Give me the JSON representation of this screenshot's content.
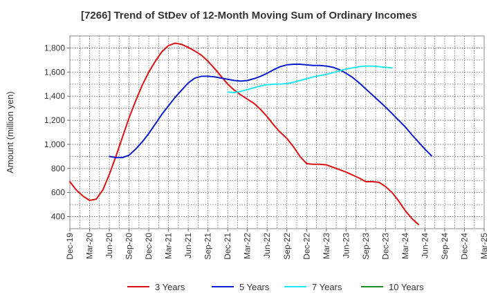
{
  "chart_data": {
    "type": "line",
    "title": "[7266]  Trend of StDev of 12-Month Moving Sum of Ordinary Incomes",
    "xlabel": "",
    "ylabel": "Amount (million yen)",
    "ylim": [
      300,
      1900
    ],
    "yticks": [
      400,
      600,
      800,
      1000,
      1200,
      1400,
      1600,
      1800
    ],
    "ytick_labels": [
      "400",
      "600",
      "800",
      "1,000",
      "1,200",
      "1,400",
      "1,600",
      "1,800"
    ],
    "xticks": [
      "Dec-19",
      "Mar-20",
      "Jun-20",
      "Sep-20",
      "Dec-20",
      "Mar-21",
      "Jun-21",
      "Sep-21",
      "Dec-21",
      "Mar-22",
      "Jun-22",
      "Sep-22",
      "Dec-22",
      "Mar-23",
      "Jun-23",
      "Sep-23",
      "Dec-23",
      "Mar-24",
      "Jun-24",
      "Sep-24",
      "Dec-24",
      "Mar-25"
    ],
    "grid": true,
    "legend_position": "bottom",
    "series": [
      {
        "name": "3 Years",
        "color": "#dd1111",
        "start_index": 0,
        "values": [
          690,
          620,
          570,
          535,
          545,
          620,
          750,
          900,
          1060,
          1220,
          1360,
          1490,
          1600,
          1690,
          1770,
          1820,
          1840,
          1830,
          1805,
          1775,
          1740,
          1690,
          1630,
          1565,
          1500,
          1450,
          1410,
          1375,
          1340,
          1290,
          1230,
          1160,
          1100,
          1050,
          980,
          900,
          840,
          835,
          835,
          830,
          810,
          790,
          770,
          745,
          720,
          690,
          690,
          685,
          650,
          600,
          530,
          450,
          385,
          335
        ]
      },
      {
        "name": "5 Years",
        "color": "#0a1ccc",
        "start_index": 6,
        "values": [
          900,
          890,
          890,
          910,
          960,
          1020,
          1090,
          1170,
          1250,
          1320,
          1390,
          1450,
          1510,
          1550,
          1565,
          1565,
          1560,
          1550,
          1540,
          1530,
          1525,
          1530,
          1545,
          1565,
          1590,
          1620,
          1645,
          1660,
          1665,
          1665,
          1660,
          1655,
          1655,
          1650,
          1640,
          1620,
          1590,
          1555,
          1510,
          1460,
          1410,
          1360,
          1310,
          1255,
          1200,
          1145,
          1080,
          1020,
          960,
          905
        ]
      },
      {
        "name": "7 Years",
        "color": "#22e6ee",
        "start_index": 24,
        "values": [
          1435,
          1430,
          1440,
          1455,
          1470,
          1485,
          1495,
          1500,
          1500,
          1505,
          1515,
          1530,
          1545,
          1560,
          1570,
          1580,
          1595,
          1610,
          1625,
          1635,
          1645,
          1650,
          1650,
          1645,
          1640,
          1635
        ]
      },
      {
        "name": "10 Years",
        "color": "#1c8a1c",
        "start_index": 0,
        "values": []
      }
    ]
  }
}
